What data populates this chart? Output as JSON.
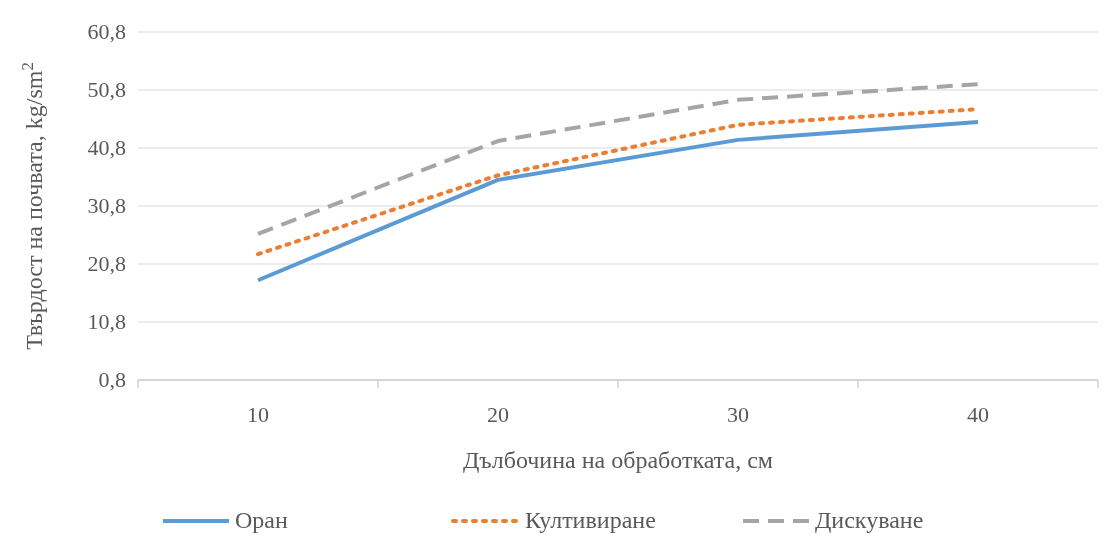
{
  "chart_data": {
    "type": "line",
    "xlabel": "Дълбочина на обработката, см",
    "ylabel": "Твърдост на почвата, kg/sm$^{2}$",
    "categories": [
      "10",
      "20",
      "30",
      "40"
    ],
    "series": [
      {
        "name": "Оран",
        "color": "#5b9bd5",
        "line_style": "solid",
        "values": [
          18.0,
          35.3,
          42.2,
          45.3
        ]
      },
      {
        "name": "Култивиране",
        "color": "#ed7d31",
        "line_style": "dotted",
        "values": [
          22.5,
          36.1,
          44.8,
          47.5
        ]
      },
      {
        "name": "Дискуване",
        "color": "#a5a5a5",
        "line_style": "dashed",
        "values": [
          26.0,
          42.0,
          49.1,
          51.8
        ]
      }
    ],
    "ylim": [
      0.8,
      60.8
    ],
    "yticks": [
      {
        "value": 0.8,
        "label": "0,8"
      },
      {
        "value": 10.8,
        "label": "10,8"
      },
      {
        "value": 20.8,
        "label": "20,8"
      },
      {
        "value": 30.8,
        "label": "30,8"
      },
      {
        "value": 40.8,
        "label": "40,8"
      },
      {
        "value": 50.8,
        "label": "50,8"
      },
      {
        "value": 60.8,
        "label": "60,8"
      }
    ],
    "grid": "y",
    "legend": "bottom",
    "marker": "none"
  }
}
